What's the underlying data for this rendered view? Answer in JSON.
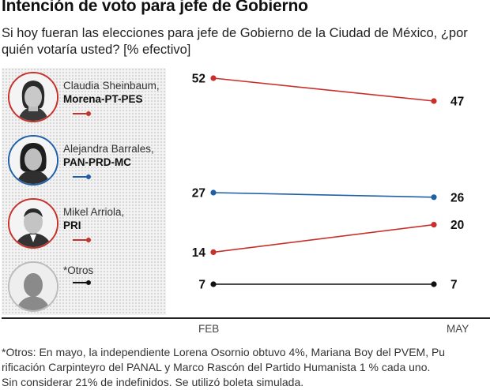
{
  "title": "Intención de voto para jefe de Gobierno",
  "subtitle": "Si hoy fueran las elecciones para jefe de Gobierno de la Ciudad de México, ¿por quién votaría usted? [% efectivo]",
  "candidates": [
    {
      "name": "Claudia Sheinbaum,",
      "party": "Morena-PT-PES",
      "color": "#c8312b",
      "icon": "woman-portrait-icon"
    },
    {
      "name": "Alejandra Barrales,",
      "party": "PAN-PRD-MC",
      "color": "#1f5fa8",
      "icon": "woman-portrait-icon"
    },
    {
      "name": "Mikel Arriola,",
      "party": "PRI",
      "color": "#c8312b",
      "icon": "man-portrait-icon"
    },
    {
      "name": "*Otros",
      "party": "",
      "color": "#111111",
      "icon": "silhouette-icon"
    }
  ],
  "chart_data": {
    "type": "line",
    "x": [
      "FEB",
      "MAY"
    ],
    "ylim": [
      0,
      60
    ],
    "series": [
      {
        "name": "Claudia Sheinbaum",
        "values": [
          52,
          47
        ],
        "color": "#c8312b"
      },
      {
        "name": "Alejandra Barrales",
        "values": [
          27,
          26
        ],
        "color": "#1f5fa8"
      },
      {
        "name": "Mikel Arriola",
        "values": [
          14,
          20
        ],
        "color": "#c8312b"
      },
      {
        "name": "*Otros",
        "values": [
          7,
          7
        ],
        "color": "#111111"
      }
    ]
  },
  "footnote": [
    "*Otros: En mayo, la independiente Lorena Osornio obtuvo 4%, Mariana Boy del PVEM, Pu",
    "rificación Carpinteyro del PANAL y Marco Rascón del Partido Humanista 1 % cada uno.",
    "Sin considerar 21% de indefinidos. Se utilizó boleta simulada."
  ]
}
